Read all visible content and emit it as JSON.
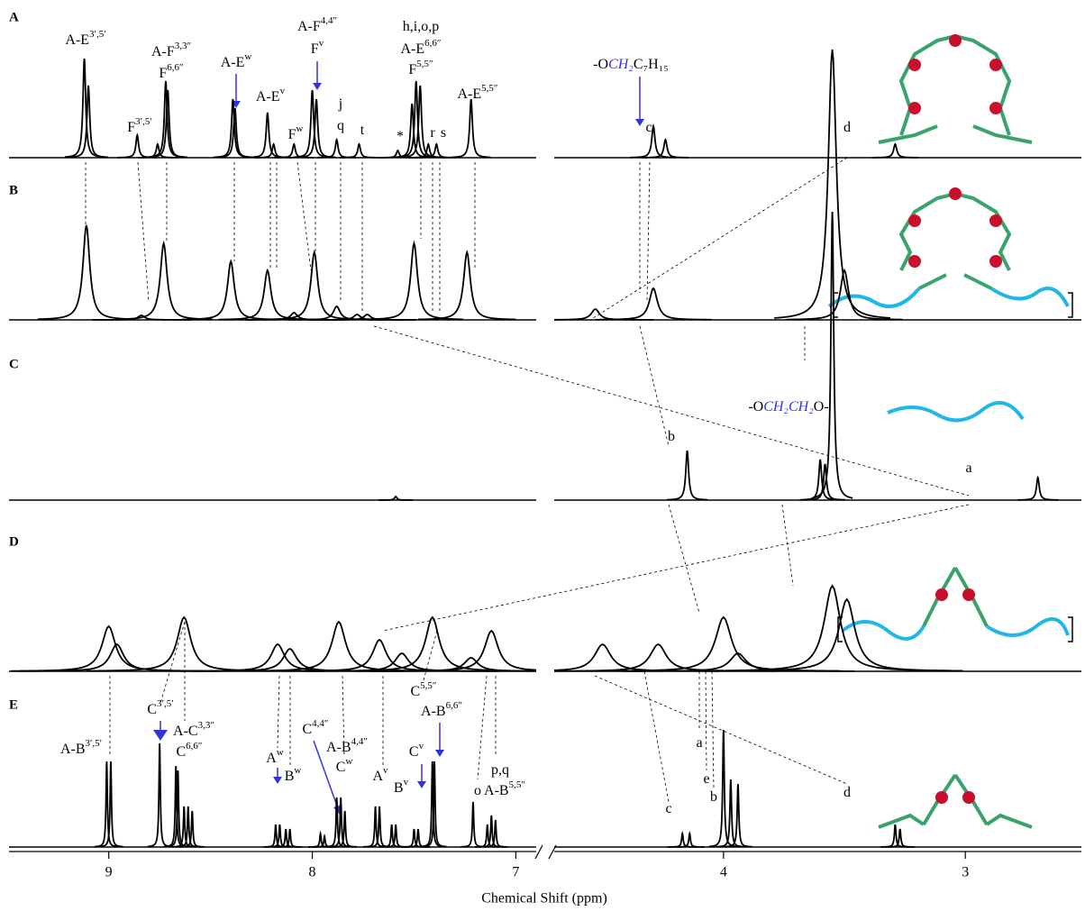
{
  "chart_data": {
    "type": "spectrum",
    "xlabel": "Chemical Shift (ppm)",
    "axes": [
      {
        "xlim": [
          9.49,
          6.9
        ],
        "xticks": [
          9,
          8,
          7
        ]
      },
      {
        "xlim": [
          4.7,
          2.52
        ],
        "xticks": [
          4,
          3
        ]
      }
    ],
    "series": [
      {
        "name": "A",
        "color": "#000000",
        "width": 0.008,
        "x": [
          9.12,
          9.1,
          8.86,
          8.76,
          8.72,
          8.71,
          8.39,
          8.38,
          8.22,
          8.19,
          8.09,
          8.0,
          7.98,
          7.88,
          7.77,
          7.58,
          7.51,
          7.49,
          7.47,
          7.43,
          7.39,
          7.22,
          4.29,
          4.24,
          3.29
        ],
        "values": [
          110,
          80,
          25,
          15,
          85,
          75,
          65,
          55,
          50,
          15,
          15,
          75,
          65,
          20,
          15,
          8,
          60,
          85,
          80,
          15,
          15,
          65,
          35,
          20,
          15
        ],
        "annotations": [
          {
            "text": "A-E",
            "sup": "3′,5′"
          },
          {
            "text": "F",
            "sup": "3′,5′"
          },
          {
            "text": "A-F",
            "sup": "3,3″"
          },
          {
            "text": "F",
            "sup": "6,6″"
          },
          {
            "text": "A-E",
            "sup": "w"
          },
          {
            "text": "A-E",
            "sup": "v"
          },
          {
            "text": "F",
            "sup": "w"
          },
          {
            "text": "A-F",
            "sup": "4,4″"
          },
          {
            "text": "F",
            "sup": "v"
          },
          {
            "text": "j"
          },
          {
            "text": "q"
          },
          {
            "text": "t"
          },
          {
            "text": "*"
          },
          {
            "text": "h,i,o,p"
          },
          {
            "text": "A-E",
            "sup": "6,6″"
          },
          {
            "text": "F",
            "sup": "5,5″"
          },
          {
            "text": "r"
          },
          {
            "text": "s"
          },
          {
            "text": "A-E",
            "sup": "5,5″"
          },
          {
            "text": "-O",
            "em": "CH₂",
            "tail": "C₇H₁₅"
          },
          {
            "text": "c"
          },
          {
            "text": "d"
          }
        ]
      },
      {
        "name": "B",
        "color": "#000000",
        "width": 0.02,
        "x": [
          9.11,
          8.84,
          8.73,
          8.4,
          8.22,
          8.09,
          7.99,
          7.88,
          7.78,
          7.73,
          7.5,
          7.24,
          4.53,
          4.29,
          3.55,
          3.5
        ],
        "values": [
          105,
          5,
          85,
          65,
          55,
          8,
          75,
          15,
          6,
          6,
          85,
          75,
          12,
          35,
          300,
          55
        ],
        "annotations": []
      },
      {
        "name": "C",
        "color": "#000000",
        "width": 0.007,
        "x": [
          7.59,
          4.15,
          3.6,
          3.58,
          3.55,
          2.7
        ],
        "values": [
          4,
          55,
          45,
          40,
          320,
          25
        ],
        "annotations": [
          {
            "text": "-O",
            "em": "CH₂CH₂",
            "tail": "O-"
          },
          {
            "text": "b"
          },
          {
            "text": "a"
          }
        ]
      },
      {
        "name": "D",
        "color": "#000000",
        "width": 0.04,
        "x": [
          9.0,
          8.96,
          8.63,
          8.17,
          8.11,
          7.87,
          7.67,
          7.56,
          7.41,
          7.22,
          7.12,
          4.5,
          4.27,
          4.0,
          3.94,
          3.55,
          3.49
        ],
        "values": [
          50,
          30,
          60,
          30,
          25,
          55,
          35,
          20,
          60,
          15,
          45,
          30,
          30,
          60,
          20,
          95,
          80
        ],
        "annotations": []
      },
      {
        "name": "E",
        "color": "#000000",
        "width": 0.004,
        "x": [
          9.01,
          8.99,
          8.75,
          8.67,
          8.66,
          8.63,
          8.61,
          8.59,
          8.18,
          8.16,
          8.13,
          8.11,
          7.96,
          7.94,
          7.88,
          7.86,
          7.84,
          7.69,
          7.67,
          7.61,
          7.59,
          7.5,
          7.48,
          7.41,
          7.4,
          7.21,
          7.14,
          7.12,
          7.1,
          4.17,
          4.14,
          4.0,
          3.97,
          3.94,
          3.29,
          3.27
        ],
        "values": [
          95,
          95,
          115,
          90,
          85,
          45,
          45,
          40,
          25,
          25,
          20,
          20,
          15,
          12,
          55,
          55,
          40,
          45,
          45,
          25,
          25,
          20,
          20,
          95,
          95,
          50,
          25,
          35,
          30,
          15,
          15,
          130,
          75,
          70,
          25,
          20
        ],
        "annotations": [
          {
            "text": "A-B",
            "sup": "3′,5′"
          },
          {
            "text": "C",
            "sup": "3′,5′"
          },
          {
            "text": "A-C",
            "sup": "3,3″"
          },
          {
            "text": "C",
            "sup": "6,6″"
          },
          {
            "text": "A",
            "sup": "w"
          },
          {
            "text": "B",
            "sup": "w"
          },
          {
            "text": "C",
            "sup": "4,4″"
          },
          {
            "text": "A-B",
            "sup": "4,4″"
          },
          {
            "text": "C",
            "sup": "w"
          },
          {
            "text": "A",
            "sup": "v"
          },
          {
            "text": "B",
            "sup": "v"
          },
          {
            "text": "C",
            "sup": "5,5″"
          },
          {
            "text": "A-B",
            "sup": "6,6″"
          },
          {
            "text": "C",
            "sup": "v"
          },
          {
            "text": "o"
          },
          {
            "text": "p,q"
          },
          {
            "text": "A-B",
            "sup": "5,5″"
          },
          {
            "text": "c"
          },
          {
            "text": "a"
          },
          {
            "text": "e"
          },
          {
            "text": "b"
          },
          {
            "text": "d"
          }
        ]
      }
    ]
  }
}
